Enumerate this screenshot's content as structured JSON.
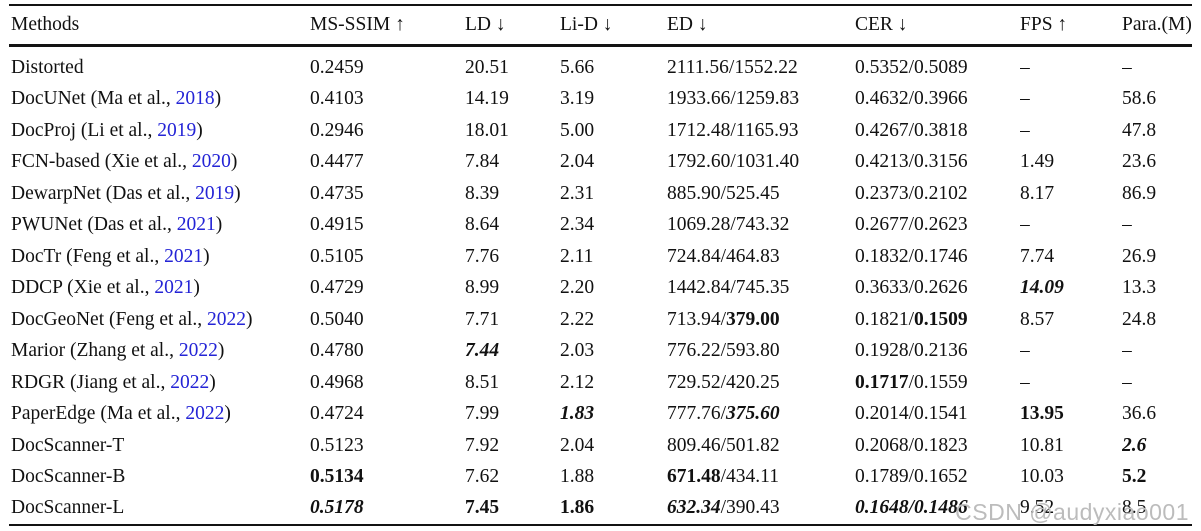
{
  "table": {
    "header": [
      "Methods",
      "MS-SSIM ↑",
      "LD ↓",
      "Li-D ↓",
      "ED ↓",
      "CER ↓",
      "FPS ↑",
      "Para.(M)"
    ],
    "rows": [
      {
        "cells": [
          [
            {
              "t": "Distorted",
              "s": "n"
            }
          ],
          [
            {
              "t": "0.2459",
              "s": "n"
            }
          ],
          [
            {
              "t": "20.51",
              "s": "n"
            }
          ],
          [
            {
              "t": "5.66",
              "s": "n"
            }
          ],
          [
            {
              "t": "2111.56/1552.22",
              "s": "n"
            }
          ],
          [
            {
              "t": "0.5352/0.5089",
              "s": "n"
            }
          ],
          [
            {
              "t": "–",
              "s": "n"
            }
          ],
          [
            {
              "t": "–",
              "s": "n"
            }
          ]
        ]
      },
      {
        "cells": [
          [
            {
              "t": "DocUNet (Ma et al., ",
              "s": "n"
            },
            {
              "t": "2018",
              "s": "link"
            },
            {
              "t": ")",
              "s": "n"
            }
          ],
          [
            {
              "t": "0.4103",
              "s": "n"
            }
          ],
          [
            {
              "t": "14.19",
              "s": "n"
            }
          ],
          [
            {
              "t": "3.19",
              "s": "n"
            }
          ],
          [
            {
              "t": "1933.66/1259.83",
              "s": "n"
            }
          ],
          [
            {
              "t": "0.4632/0.3966",
              "s": "n"
            }
          ],
          [
            {
              "t": "–",
              "s": "n"
            }
          ],
          [
            {
              "t": "58.6",
              "s": "n"
            }
          ]
        ]
      },
      {
        "cells": [
          [
            {
              "t": "DocProj (Li et al., ",
              "s": "n"
            },
            {
              "t": "2019",
              "s": "link"
            },
            {
              "t": ")",
              "s": "n"
            }
          ],
          [
            {
              "t": "0.2946",
              "s": "n"
            }
          ],
          [
            {
              "t": "18.01",
              "s": "n"
            }
          ],
          [
            {
              "t": "5.00",
              "s": "n"
            }
          ],
          [
            {
              "t": "1712.48/1165.93",
              "s": "n"
            }
          ],
          [
            {
              "t": "0.4267/0.3818",
              "s": "n"
            }
          ],
          [
            {
              "t": "–",
              "s": "n"
            }
          ],
          [
            {
              "t": "47.8",
              "s": "n"
            }
          ]
        ]
      },
      {
        "cells": [
          [
            {
              "t": "FCN-based (Xie et al., ",
              "s": "n"
            },
            {
              "t": "2020",
              "s": "link"
            },
            {
              "t": ")",
              "s": "n"
            }
          ],
          [
            {
              "t": "0.4477",
              "s": "n"
            }
          ],
          [
            {
              "t": "7.84",
              "s": "n"
            }
          ],
          [
            {
              "t": "2.04",
              "s": "n"
            }
          ],
          [
            {
              "t": "1792.60/1031.40",
              "s": "n"
            }
          ],
          [
            {
              "t": "0.4213/0.3156",
              "s": "n"
            }
          ],
          [
            {
              "t": "1.49",
              "s": "n"
            }
          ],
          [
            {
              "t": "23.6",
              "s": "n"
            }
          ]
        ]
      },
      {
        "cells": [
          [
            {
              "t": "DewarpNet (Das et al., ",
              "s": "n"
            },
            {
              "t": "2019",
              "s": "link"
            },
            {
              "t": ")",
              "s": "n"
            }
          ],
          [
            {
              "t": "0.4735",
              "s": "n"
            }
          ],
          [
            {
              "t": "8.39",
              "s": "n"
            }
          ],
          [
            {
              "t": "2.31",
              "s": "n"
            }
          ],
          [
            {
              "t": "885.90/525.45",
              "s": "n"
            }
          ],
          [
            {
              "t": "0.2373/0.2102",
              "s": "n"
            }
          ],
          [
            {
              "t": "8.17",
              "s": "n"
            }
          ],
          [
            {
              "t": "86.9",
              "s": "n"
            }
          ]
        ]
      },
      {
        "cells": [
          [
            {
              "t": "PWUNet (Das et al., ",
              "s": "n"
            },
            {
              "t": "2021",
              "s": "link"
            },
            {
              "t": ")",
              "s": "n"
            }
          ],
          [
            {
              "t": "0.4915",
              "s": "n"
            }
          ],
          [
            {
              "t": "8.64",
              "s": "n"
            }
          ],
          [
            {
              "t": "2.34",
              "s": "n"
            }
          ],
          [
            {
              "t": "1069.28/743.32",
              "s": "n"
            }
          ],
          [
            {
              "t": "0.2677/0.2623",
              "s": "n"
            }
          ],
          [
            {
              "t": "–",
              "s": "n"
            }
          ],
          [
            {
              "t": "–",
              "s": "n"
            }
          ]
        ]
      },
      {
        "cells": [
          [
            {
              "t": "DocTr (Feng et al., ",
              "s": "n"
            },
            {
              "t": "2021",
              "s": "link"
            },
            {
              "t": ")",
              "s": "n"
            }
          ],
          [
            {
              "t": "0.5105",
              "s": "n"
            }
          ],
          [
            {
              "t": "7.76",
              "s": "n"
            }
          ],
          [
            {
              "t": "2.11",
              "s": "n"
            }
          ],
          [
            {
              "t": "724.84/464.83",
              "s": "n"
            }
          ],
          [
            {
              "t": "0.1832/0.1746",
              "s": "n"
            }
          ],
          [
            {
              "t": "7.74",
              "s": "n"
            }
          ],
          [
            {
              "t": "26.9",
              "s": "n"
            }
          ]
        ]
      },
      {
        "cells": [
          [
            {
              "t": "DDCP (Xie et al., ",
              "s": "n"
            },
            {
              "t": "2021",
              "s": "link"
            },
            {
              "t": ")",
              "s": "n"
            }
          ],
          [
            {
              "t": "0.4729",
              "s": "n"
            }
          ],
          [
            {
              "t": "8.99",
              "s": "n"
            }
          ],
          [
            {
              "t": "2.20",
              "s": "n"
            }
          ],
          [
            {
              "t": "1442.84/745.35",
              "s": "n"
            }
          ],
          [
            {
              "t": "0.3633/0.2626",
              "s": "n"
            }
          ],
          [
            {
              "t": "14.09",
              "s": "bi"
            }
          ],
          [
            {
              "t": "13.3",
              "s": "n"
            }
          ]
        ]
      },
      {
        "cells": [
          [
            {
              "t": "DocGeoNet (Feng et al., ",
              "s": "n"
            },
            {
              "t": "2022",
              "s": "link"
            },
            {
              "t": ")",
              "s": "n"
            }
          ],
          [
            {
              "t": "0.5040",
              "s": "n"
            }
          ],
          [
            {
              "t": "7.71",
              "s": "n"
            }
          ],
          [
            {
              "t": "2.22",
              "s": "n"
            }
          ],
          [
            {
              "t": "713.94/",
              "s": "n"
            },
            {
              "t": "379.00",
              "s": "b"
            }
          ],
          [
            {
              "t": "0.1821/",
              "s": "n"
            },
            {
              "t": "0.1509",
              "s": "b"
            }
          ],
          [
            {
              "t": "8.57",
              "s": "n"
            }
          ],
          [
            {
              "t": "24.8",
              "s": "n"
            }
          ]
        ]
      },
      {
        "cells": [
          [
            {
              "t": "Marior (Zhang et al., ",
              "s": "n"
            },
            {
              "t": "2022",
              "s": "link"
            },
            {
              "t": ")",
              "s": "n"
            }
          ],
          [
            {
              "t": "0.4780",
              "s": "n"
            }
          ],
          [
            {
              "t": "7.44",
              "s": "bi"
            }
          ],
          [
            {
              "t": "2.03",
              "s": "n"
            }
          ],
          [
            {
              "t": "776.22/593.80",
              "s": "n"
            }
          ],
          [
            {
              "t": "0.1928/0.2136",
              "s": "n"
            }
          ],
          [
            {
              "t": "–",
              "s": "n"
            }
          ],
          [
            {
              "t": "–",
              "s": "n"
            }
          ]
        ]
      },
      {
        "cells": [
          [
            {
              "t": "RDGR (Jiang et al., ",
              "s": "n"
            },
            {
              "t": "2022",
              "s": "link"
            },
            {
              "t": ")",
              "s": "n"
            }
          ],
          [
            {
              "t": "0.4968",
              "s": "n"
            }
          ],
          [
            {
              "t": "8.51",
              "s": "n"
            }
          ],
          [
            {
              "t": "2.12",
              "s": "n"
            }
          ],
          [
            {
              "t": "729.52/420.25",
              "s": "n"
            }
          ],
          [
            {
              "t": "0.1717",
              "s": "b"
            },
            {
              "t": "/0.1559",
              "s": "n"
            }
          ],
          [
            {
              "t": "–",
              "s": "n"
            }
          ],
          [
            {
              "t": "–",
              "s": "n"
            }
          ]
        ]
      },
      {
        "cells": [
          [
            {
              "t": "PaperEdge (Ma et al., ",
              "s": "n"
            },
            {
              "t": "2022",
              "s": "link"
            },
            {
              "t": ")",
              "s": "n"
            }
          ],
          [
            {
              "t": "0.4724",
              "s": "n"
            }
          ],
          [
            {
              "t": "7.99",
              "s": "n"
            }
          ],
          [
            {
              "t": "1.83",
              "s": "bi"
            }
          ],
          [
            {
              "t": "777.76/",
              "s": "n"
            },
            {
              "t": "375.60",
              "s": "bi"
            }
          ],
          [
            {
              "t": "0.2014/0.1541",
              "s": "n"
            }
          ],
          [
            {
              "t": "13.95",
              "s": "b"
            }
          ],
          [
            {
              "t": "36.6",
              "s": "n"
            }
          ]
        ]
      },
      {
        "cells": [
          [
            {
              "t": "DocScanner-T",
              "s": "n"
            }
          ],
          [
            {
              "t": "0.5123",
              "s": "n"
            }
          ],
          [
            {
              "t": "7.92",
              "s": "n"
            }
          ],
          [
            {
              "t": "2.04",
              "s": "n"
            }
          ],
          [
            {
              "t": "809.46/501.82",
              "s": "n"
            }
          ],
          [
            {
              "t": "0.2068/0.1823",
              "s": "n"
            }
          ],
          [
            {
              "t": "10.81",
              "s": "n"
            }
          ],
          [
            {
              "t": "2.6",
              "s": "bi"
            }
          ]
        ]
      },
      {
        "cells": [
          [
            {
              "t": "DocScanner-B",
              "s": "n"
            }
          ],
          [
            {
              "t": "0.5134",
              "s": "b"
            }
          ],
          [
            {
              "t": "7.62",
              "s": "n"
            }
          ],
          [
            {
              "t": "1.88",
              "s": "n"
            }
          ],
          [
            {
              "t": "671.48",
              "s": "b"
            },
            {
              "t": "/434.11",
              "s": "n"
            }
          ],
          [
            {
              "t": "0.1789/0.1652",
              "s": "n"
            }
          ],
          [
            {
              "t": "10.03",
              "s": "n"
            }
          ],
          [
            {
              "t": "5.2",
              "s": "b"
            }
          ]
        ]
      },
      {
        "cells": [
          [
            {
              "t": "DocScanner-L",
              "s": "n"
            }
          ],
          [
            {
              "t": "0.5178",
              "s": "bi"
            }
          ],
          [
            {
              "t": "7.45",
              "s": "b"
            }
          ],
          [
            {
              "t": "1.86",
              "s": "b"
            }
          ],
          [
            {
              "t": "632.34",
              "s": "bi"
            },
            {
              "t": "/390.43",
              "s": "n"
            }
          ],
          [
            {
              "t": "0.1648/0.1486",
              "s": "bi"
            }
          ],
          [
            {
              "t": "9.52",
              "s": "n"
            }
          ],
          [
            {
              "t": "8.5",
              "s": "n"
            }
          ]
        ]
      }
    ]
  },
  "watermark": "CSDN @audyxiao001",
  "colors": {
    "text": "#111111",
    "citation_link": "#2424d6",
    "rule": "#131313",
    "watermark": "#bcbcbc"
  }
}
